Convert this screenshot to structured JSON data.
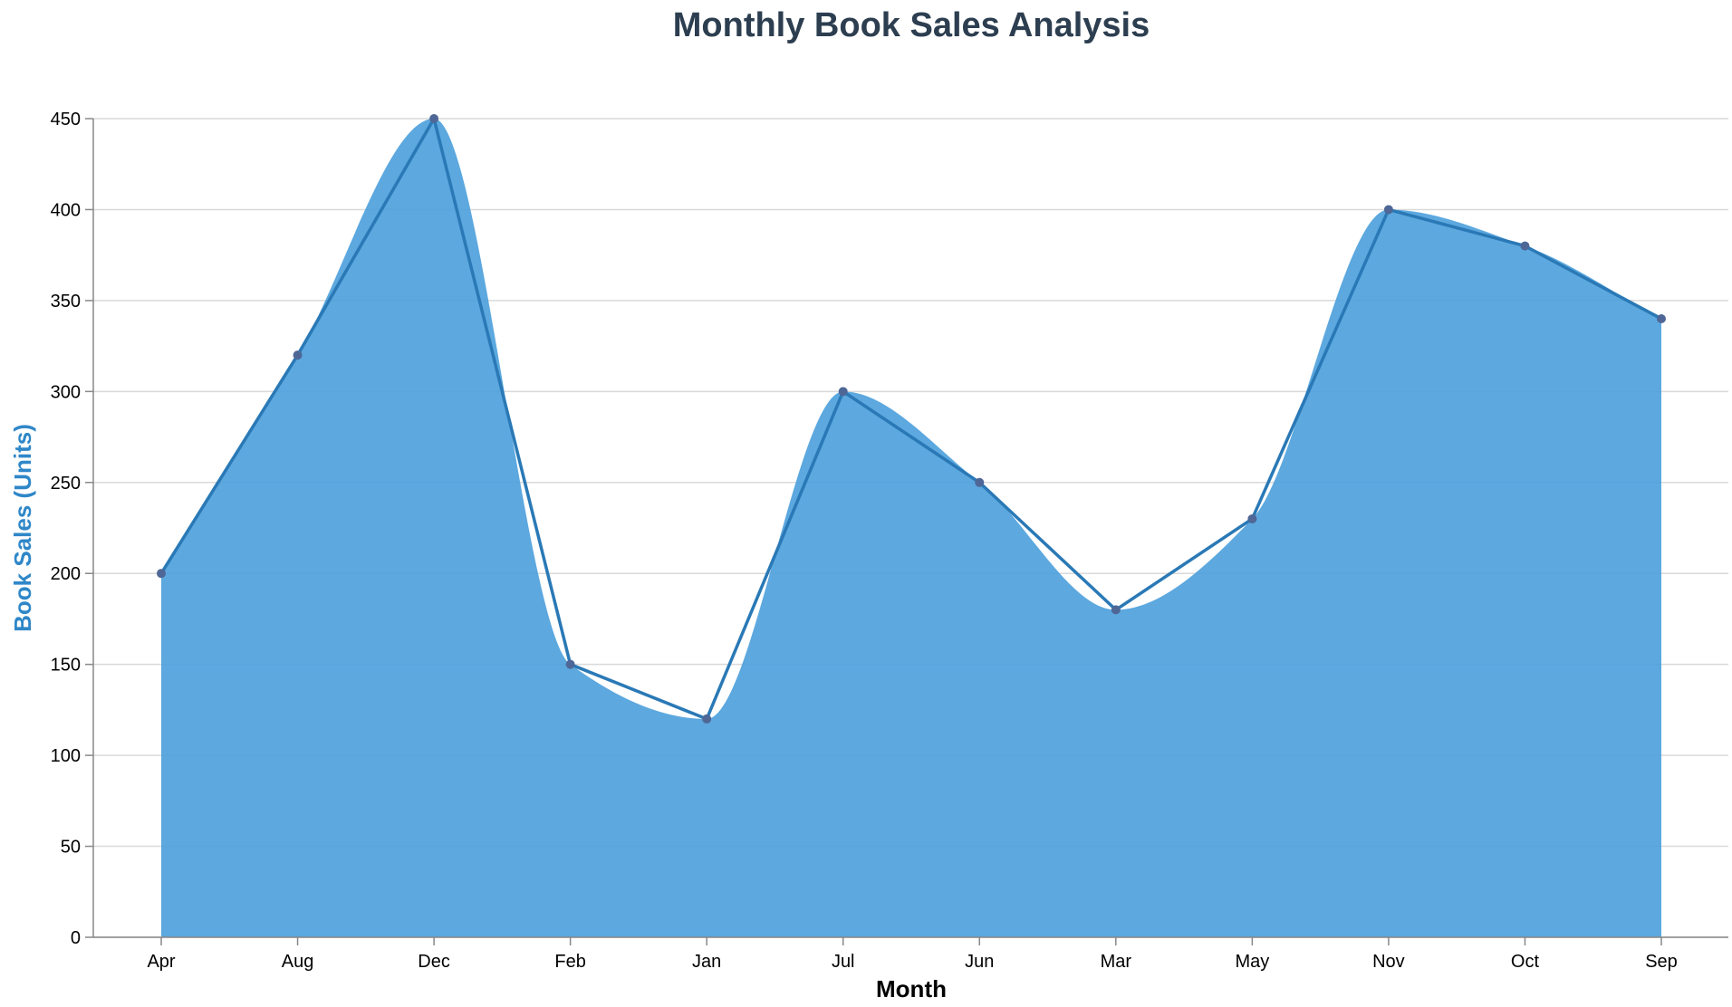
{
  "colors": {
    "area_fill": "#4a9fdc",
    "line": "#2a79b6",
    "point": "#4f6796",
    "title": "#2c3e50",
    "y_axis_title": "#2f87c8"
  },
  "chart_data": {
    "type": "area",
    "title": "Monthly Book Sales Analysis",
    "xlabel": "Month",
    "ylabel": "Book Sales (Units)",
    "categories": [
      "Apr",
      "Aug",
      "Dec",
      "Feb",
      "Jan",
      "Jul",
      "Jun",
      "Mar",
      "May",
      "Nov",
      "Oct",
      "Sep"
    ],
    "values": [
      200,
      320,
      450,
      150,
      120,
      300,
      250,
      180,
      230,
      400,
      380,
      340
    ],
    "ylim": [
      0,
      450
    ],
    "yticks": [
      0,
      50,
      100,
      150,
      200,
      250,
      300,
      350,
      400,
      450
    ],
    "grid": true,
    "overlay": "straight line with points over smoothed area"
  }
}
